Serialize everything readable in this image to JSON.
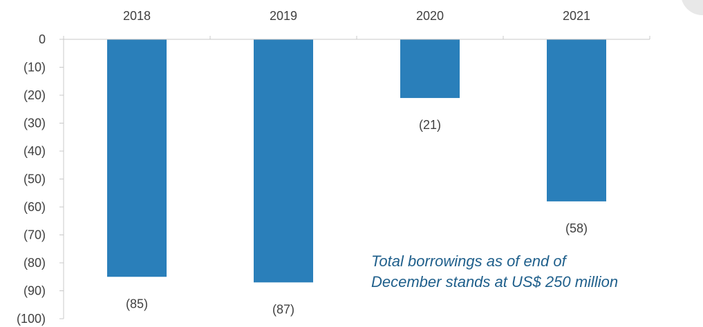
{
  "colors": {
    "bar": "#2a7fba",
    "axis": "#c8c8c8",
    "text": "#404040",
    "annotation": "#1f5f8b"
  },
  "chart_data": {
    "type": "bar",
    "categories": [
      "2018",
      "2019",
      "2020",
      "2021"
    ],
    "values": [
      -85,
      -87,
      -21,
      -58
    ],
    "data_labels": [
      "(85)",
      "(87)",
      "(21)",
      "(58)"
    ],
    "title": "",
    "xlabel": "",
    "ylabel": "",
    "ylim": [
      -100,
      0
    ],
    "y_ticks": [
      0,
      -10,
      -20,
      -30,
      -40,
      -50,
      -60,
      -70,
      -80,
      -90,
      -100
    ],
    "y_tick_labels": [
      "0",
      "(10)",
      "(20)",
      "(30)",
      "(40)",
      "(50)",
      "(60)",
      "(70)",
      "(80)",
      "(90)",
      "(100)"
    ],
    "category_axis_position": "top",
    "grid": false,
    "annotation": {
      "line1": "Total borrowings as of end of",
      "line2": "December stands at US$ 250 million"
    }
  }
}
